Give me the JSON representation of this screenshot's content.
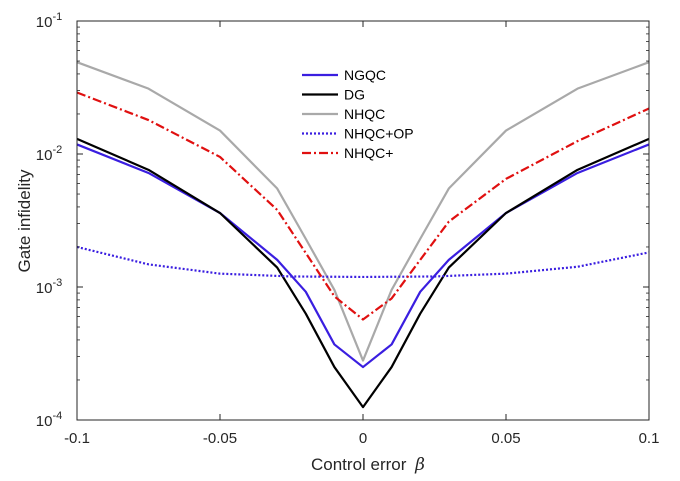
{
  "chart_data": {
    "type": "line",
    "xlabel": "Control error",
    "xlabel_symbol": "β",
    "ylabel": "Gate infidelity",
    "xlim": [
      -0.1,
      0.1
    ],
    "ylim": [
      0.0001,
      0.1
    ],
    "yscale": "log",
    "grid": false,
    "legend_position": "top-center",
    "x_ticks": [
      {
        "value": -0.1,
        "label": "-0.1"
      },
      {
        "value": -0.05,
        "label": "-0.05"
      },
      {
        "value": 0,
        "label": "0"
      },
      {
        "value": 0.05,
        "label": "0.05"
      },
      {
        "value": 0.1,
        "label": "0.1"
      }
    ],
    "y_ticks": [
      {
        "value": 0.0001,
        "base": "10",
        "exp": "-4"
      },
      {
        "value": 0.001,
        "base": "10",
        "exp": "-3"
      },
      {
        "value": 0.01,
        "base": "10",
        "exp": "-2"
      },
      {
        "value": 0.1,
        "base": "10",
        "exp": "-1"
      }
    ],
    "series": [
      {
        "name": "NGQC",
        "color": "#3a1ee0",
        "dash": "solid",
        "x": [
          -0.1,
          -0.075,
          -0.05,
          -0.03,
          -0.02,
          -0.01,
          0,
          0.01,
          0.02,
          0.03,
          0.05,
          0.075,
          0.1
        ],
        "y": [
          0.0118,
          0.0072,
          0.0036,
          0.0016,
          0.00092,
          0.00037,
          0.00025,
          0.00037,
          0.00092,
          0.0016,
          0.0036,
          0.0072,
          0.0118
        ]
      },
      {
        "name": "DG",
        "color": "#000000",
        "dash": "solid",
        "x": [
          -0.1,
          -0.075,
          -0.05,
          -0.03,
          -0.02,
          -0.01,
          0,
          0.01,
          0.02,
          0.03,
          0.05,
          0.075,
          0.1
        ],
        "y": [
          0.013,
          0.0076,
          0.0036,
          0.0014,
          0.00063,
          0.00025,
          0.000125,
          0.00025,
          0.00063,
          0.0014,
          0.0036,
          0.0076,
          0.013
        ]
      },
      {
        "name": "NHQC",
        "color": "#a9a9a9",
        "dash": "solid",
        "x": [
          -0.1,
          -0.075,
          -0.05,
          -0.03,
          -0.02,
          -0.01,
          0,
          0.01,
          0.02,
          0.03,
          0.05,
          0.075,
          0.1
        ],
        "y": [
          0.049,
          0.031,
          0.015,
          0.0055,
          0.0023,
          0.00095,
          0.00028,
          0.00095,
          0.0023,
          0.0055,
          0.015,
          0.031,
          0.049
        ]
      },
      {
        "name": "NHQC+OP",
        "color": "#3a1ee0",
        "dash": "dotted",
        "x": [
          -0.1,
          -0.075,
          -0.05,
          -0.025,
          0,
          0.025,
          0.05,
          0.075,
          0.1
        ],
        "y": [
          0.002,
          0.00148,
          0.00126,
          0.0012,
          0.00119,
          0.0012,
          0.00126,
          0.00142,
          0.00182
        ]
      },
      {
        "name": "NHQC+",
        "color": "#e01010",
        "dash": "dashdot",
        "x": [
          -0.1,
          -0.075,
          -0.05,
          -0.03,
          -0.02,
          -0.01,
          0,
          0.01,
          0.02,
          0.03,
          0.05,
          0.075,
          0.1
        ],
        "y": [
          0.029,
          0.018,
          0.0095,
          0.0038,
          0.0018,
          0.00085,
          0.00057,
          0.00082,
          0.0016,
          0.0031,
          0.0065,
          0.0125,
          0.022
        ]
      }
    ]
  }
}
